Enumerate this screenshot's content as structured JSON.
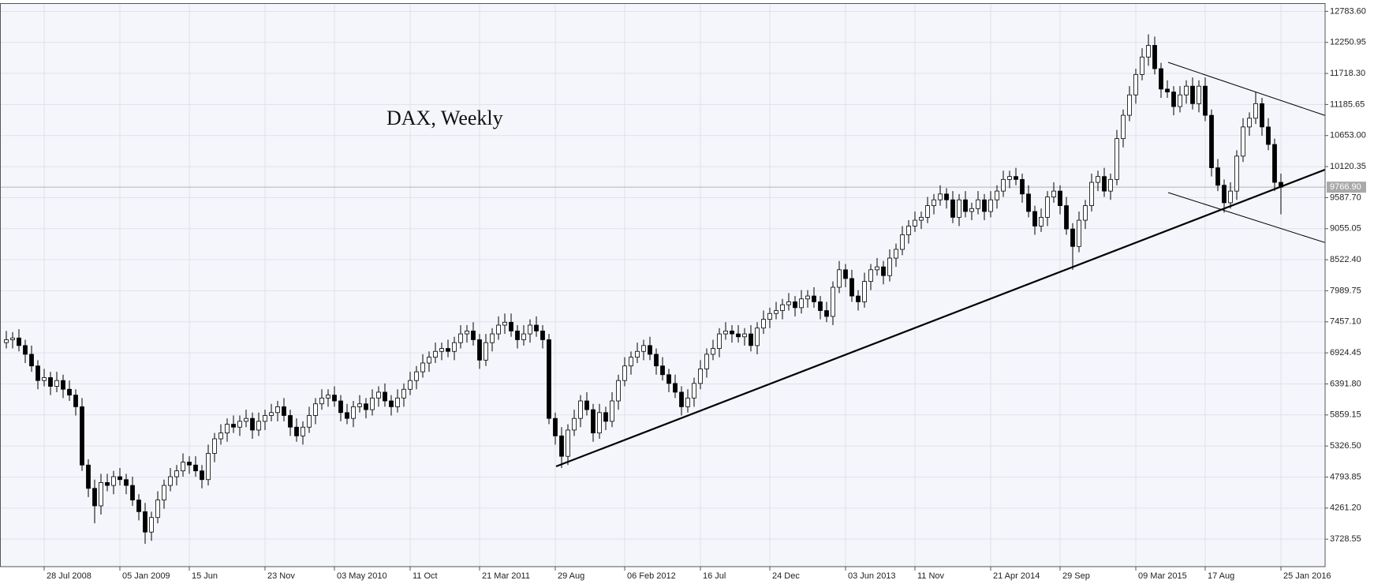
{
  "chart_data": {
    "type": "candlestick",
    "title": "DAX, Weekly",
    "categories": [
      null,
      null,
      null,
      null,
      null,
      null,
      "28 Jul 2008",
      null,
      null,
      null,
      null,
      null,
      null,
      null,
      null,
      null,
      null,
      null,
      "05 Jan 2009",
      null,
      null,
      null,
      null,
      null,
      null,
      null,
      null,
      null,
      null,
      "15 Jun",
      null,
      null,
      null,
      null,
      null,
      null,
      null,
      null,
      null,
      null,
      null,
      "23 Nov",
      null,
      null,
      null,
      null,
      null,
      null,
      null,
      null,
      null,
      null,
      "03 May 2010",
      null,
      null,
      null,
      null,
      null,
      null,
      null,
      null,
      null,
      null,
      null,
      "11 Oct",
      null,
      null,
      null,
      null,
      null,
      null,
      null,
      null,
      null,
      null,
      "21 Mar 2011",
      null,
      null,
      null,
      null,
      null,
      null,
      null,
      null,
      null,
      null,
      null,
      "29 Aug",
      null,
      null,
      null,
      null,
      null,
      null,
      null,
      null,
      null,
      null,
      "06 Feb 2012",
      null,
      null,
      null,
      null,
      null,
      null,
      null,
      null,
      null,
      null,
      null,
      "16 Jul",
      null,
      null,
      null,
      null,
      null,
      null,
      null,
      null,
      null,
      null,
      "24 Dec",
      null,
      null,
      null,
      null,
      null,
      null,
      null,
      null,
      null,
      null,
      null,
      "03 Jun 2013",
      null,
      null,
      null,
      null,
      null,
      null,
      null,
      null,
      null,
      null,
      "11 Nov",
      null,
      null,
      null,
      null,
      null,
      null,
      null,
      null,
      null,
      null,
      null,
      "21 Apr 2014",
      null,
      null,
      null,
      null,
      null,
      null,
      null,
      null,
      null,
      null,
      "29 Sep",
      null,
      null,
      null,
      null,
      null,
      null,
      null,
      null,
      null,
      null,
      null,
      "09 Mar 2015",
      null,
      null,
      null,
      null,
      null,
      null,
      null,
      null,
      null,
      null,
      "17 Aug",
      null,
      null,
      null,
      null,
      null,
      null,
      null,
      null,
      null,
      null,
      null,
      "25 Jan 2016"
    ],
    "open": [
      7100,
      7150,
      7180,
      7050,
      6900,
      6700,
      6450,
      6500,
      6350,
      6450,
      6300,
      6200,
      6000,
      5000,
      4600,
      4300,
      4700,
      4650,
      4800,
      4750,
      4650,
      4400,
      4200,
      3850,
      4100,
      4400,
      4650,
      4800,
      4900,
      5050,
      5000,
      4900,
      4750,
      5200,
      5450,
      5550,
      5700,
      5650,
      5750,
      5800,
      5600,
      5750,
      5850,
      5900,
      6000,
      5850,
      5650,
      5500,
      5650,
      5850,
      6050,
      6150,
      6200,
      6100,
      5900,
      5800,
      6000,
      6050,
      5950,
      6150,
      6250,
      6100,
      6000,
      6150,
      6300,
      6450,
      6600,
      6750,
      6850,
      6950,
      7000,
      6950,
      7100,
      7250,
      7300,
      7150,
      6800,
      7100,
      7250,
      7400,
      7450,
      7300,
      7150,
      7250,
      7400,
      7300,
      7150,
      5800,
      5500,
      5150,
      5600,
      5800,
      6100,
      5950,
      5550,
      5900,
      5750,
      6100,
      6450,
      6700,
      6850,
      6950,
      7050,
      6900,
      6700,
      6550,
      6400,
      6250,
      6000,
      6150,
      6400,
      6650,
      6900,
      7000,
      7250,
      7300,
      7250,
      7200,
      7250,
      7050,
      7350,
      7500,
      7600,
      7650,
      7750,
      7800,
      7700,
      7850,
      7900,
      7800,
      7650,
      7550,
      8050,
      8350,
      8200,
      7900,
      7800,
      8150,
      8350,
      8400,
      8250,
      8550,
      8700,
      8950,
      9100,
      9200,
      9250,
      9450,
      9550,
      9650,
      9550,
      9250,
      9550,
      9350,
      9400,
      9550,
      9350,
      9550,
      9700,
      9900,
      9950,
      9900,
      9650,
      9350,
      9100,
      9250,
      9600,
      9700,
      9450,
      9050,
      8750,
      9200,
      9450,
      9850,
      9950,
      9700,
      9900,
      10600,
      11000,
      11350,
      11700,
      12000,
      12200,
      11800,
      11450,
      11400,
      11150,
      11350,
      11500,
      11200,
      11500,
      11000,
      10100,
      9800,
      9500,
      9700,
      10300,
      10800,
      10950,
      11200,
      10800,
      10500,
      9850
    ],
    "high": [
      7300,
      7280,
      7330,
      7150,
      7050,
      6800,
      6650,
      6600,
      6600,
      6550,
      6450,
      6300,
      6150,
      5100,
      4750,
      4850,
      4850,
      4900,
      4950,
      4850,
      4800,
      4500,
      4350,
      4200,
      4550,
      4750,
      4950,
      5000,
      5200,
      5150,
      5150,
      5000,
      5350,
      5550,
      5700,
      5800,
      5850,
      5850,
      5950,
      5900,
      5900,
      5950,
      6050,
      6100,
      6150,
      5950,
      5800,
      5750,
      6000,
      6150,
      6300,
      6300,
      6350,
      6200,
      6050,
      6100,
      6200,
      6150,
      6300,
      6350,
      6400,
      6200,
      6300,
      6400,
      6600,
      6700,
      6900,
      6950,
      7100,
      7100,
      7150,
      7200,
      7400,
      7400,
      7450,
      7250,
      7250,
      7350,
      7550,
      7600,
      7600,
      7400,
      7400,
      7500,
      7550,
      7400,
      7250,
      5900,
      5650,
      5700,
      5950,
      6200,
      6250,
      6050,
      6050,
      6000,
      6250,
      6550,
      6850,
      6950,
      7100,
      7150,
      7200,
      7000,
      6850,
      6650,
      6550,
      6350,
      6300,
      6500,
      6800,
      7000,
      7150,
      7350,
      7450,
      7400,
      7400,
      7350,
      7400,
      7450,
      7650,
      7700,
      7800,
      7850,
      7950,
      7900,
      8000,
      8000,
      8050,
      7900,
      7800,
      8150,
      8500,
      8450,
      8350,
      8000,
      8300,
      8450,
      8550,
      8500,
      8700,
      8800,
      9100,
      9200,
      9350,
      9350,
      9600,
      9650,
      9800,
      9750,
      9700,
      9650,
      9700,
      9500,
      9700,
      9650,
      9700,
      9800,
      10050,
      10050,
      10100,
      10000,
      9800,
      9450,
      9400,
      9700,
      9850,
      9800,
      9600,
      9150,
      9350,
      9550,
      10000,
      10050,
      10100,
      10000,
      10750,
      11100,
      11500,
      11800,
      12150,
      12390,
      12350,
      11900,
      11600,
      11500,
      11500,
      11600,
      11650,
      11600,
      11650,
      11100,
      10250,
      9900,
      9850,
      10400,
      10950,
      11050,
      11400,
      11300,
      10950,
      10600,
      10000
    ],
    "low": [
      7000,
      7000,
      6950,
      6750,
      6600,
      6300,
      6350,
      6200,
      6250,
      6150,
      6100,
      5850,
      4900,
      4450,
      4000,
      4150,
      4550,
      4500,
      4650,
      4500,
      4300,
      4050,
      3650,
      3700,
      4000,
      4250,
      4550,
      4650,
      4800,
      4850,
      4800,
      4600,
      4650,
      5050,
      5350,
      5400,
      5550,
      5500,
      5650,
      5450,
      5500,
      5600,
      5750,
      5750,
      5750,
      5500,
      5400,
      5350,
      5550,
      5700,
      5950,
      6000,
      6000,
      5750,
      5700,
      5650,
      5900,
      5800,
      5850,
      6000,
      6000,
      5850,
      5900,
      6000,
      6200,
      6300,
      6500,
      6600,
      6750,
      6800,
      6850,
      6800,
      7000,
      7100,
      7050,
      6650,
      6700,
      6950,
      7150,
      7250,
      7200,
      7000,
      7050,
      7100,
      7200,
      7000,
      5700,
      5350,
      4950,
      5000,
      5500,
      5650,
      5850,
      5400,
      5450,
      5600,
      5650,
      5950,
      6350,
      6550,
      6750,
      6800,
      6800,
      6550,
      6450,
      6250,
      6150,
      5850,
      5900,
      6000,
      6300,
      6500,
      6800,
      6850,
      7150,
      7100,
      7100,
      7050,
      6950,
      6900,
      7250,
      7350,
      7500,
      7500,
      7650,
      7550,
      7600,
      7700,
      7700,
      7500,
      7450,
      7400,
      7950,
      8050,
      7800,
      7650,
      7700,
      8000,
      8250,
      8100,
      8150,
      8400,
      8600,
      8800,
      9000,
      9050,
      9150,
      9300,
      9450,
      9400,
      9150,
      9100,
      9250,
      9200,
      9300,
      9200,
      9250,
      9400,
      9600,
      9750,
      9800,
      9500,
      9250,
      8950,
      9000,
      9100,
      9500,
      9300,
      8950,
      8350,
      8650,
      9050,
      9350,
      9700,
      9600,
      9550,
      9800,
      10450,
      10900,
      11200,
      11600,
      11850,
      11700,
      11300,
      11300,
      11000,
      11050,
      11200,
      11100,
      11050,
      10900,
      9950,
      9700,
      9330,
      9400,
      9550,
      10200,
      10650,
      10850,
      10650,
      10400,
      9700,
      9300
    ],
    "close": [
      7150,
      7180,
      7050,
      6900,
      6700,
      6450,
      6500,
      6350,
      6450,
      6300,
      6200,
      6000,
      5000,
      4600,
      4300,
      4700,
      4650,
      4800,
      4750,
      4650,
      4400,
      4200,
      3850,
      4100,
      4400,
      4650,
      4800,
      4900,
      5050,
      5000,
      4900,
      4750,
      5200,
      5450,
      5550,
      5700,
      5650,
      5750,
      5800,
      5600,
      5750,
      5850,
      5900,
      6000,
      5850,
      5650,
      5500,
      5650,
      5850,
      6050,
      6150,
      6200,
      6100,
      5900,
      5800,
      6000,
      6050,
      5950,
      6150,
      6250,
      6100,
      6000,
      6150,
      6300,
      6450,
      6600,
      6750,
      6850,
      6950,
      7000,
      6950,
      7100,
      7250,
      7300,
      7150,
      6800,
      7100,
      7250,
      7400,
      7450,
      7300,
      7150,
      7250,
      7400,
      7300,
      7150,
      5800,
      5500,
      5150,
      5600,
      5800,
      6100,
      5950,
      5550,
      5900,
      5750,
      6100,
      6450,
      6700,
      6850,
      6950,
      7050,
      6900,
      6700,
      6550,
      6400,
      6250,
      6000,
      6150,
      6400,
      6650,
      6900,
      7000,
      7250,
      7300,
      7250,
      7200,
      7250,
      7050,
      7350,
      7500,
      7600,
      7650,
      7750,
      7800,
      7700,
      7850,
      7900,
      7800,
      7650,
      7550,
      8050,
      8350,
      8200,
      7900,
      7800,
      8150,
      8350,
      8400,
      8250,
      8550,
      8700,
      8950,
      9100,
      9200,
      9250,
      9450,
      9550,
      9650,
      9550,
      9250,
      9550,
      9350,
      9400,
      9550,
      9350,
      9550,
      9700,
      9900,
      9950,
      9900,
      9650,
      9350,
      9100,
      9250,
      9600,
      9700,
      9450,
      9050,
      8750,
      9200,
      9450,
      9850,
      9950,
      9700,
      9900,
      10600,
      11000,
      11350,
      11700,
      12000,
      12200,
      11800,
      11450,
      11400,
      11150,
      11350,
      11500,
      11200,
      11500,
      11000,
      10100,
      9800,
      9500,
      9700,
      10300,
      10800,
      10950,
      11200,
      10800,
      10500,
      9850,
      9766.9
    ],
    "up_color": "#ffffff",
    "down_color": "#000000",
    "ylim": [
      3257,
      12924
    ],
    "yticks": [
      {
        "value": 12783.6,
        "label": "12783.60"
      },
      {
        "value": 12250.95,
        "label": "12250.95"
      },
      {
        "value": 11718.3,
        "label": "11718.30"
      },
      {
        "value": 11185.65,
        "label": "11185.65"
      },
      {
        "value": 10653,
        "label": "10653.00"
      },
      {
        "value": 10120.35,
        "label": "10120.35"
      },
      {
        "value": 9587.7,
        "label": "9587.70"
      },
      {
        "value": 9055.05,
        "label": "9055.05"
      },
      {
        "value": 8522.4,
        "label": "8522.40"
      },
      {
        "value": 7989.75,
        "label": "7989.75"
      },
      {
        "value": 7457.1,
        "label": "7457.10"
      },
      {
        "value": 6924.45,
        "label": "6924.45"
      },
      {
        "value": 6391.8,
        "label": "6391.80"
      },
      {
        "value": 5859.15,
        "label": "5859.15"
      },
      {
        "value": 5326.5,
        "label": "5326.50"
      },
      {
        "value": 4793.85,
        "label": "4793.85"
      },
      {
        "value": 4261.2,
        "label": "4261.20"
      },
      {
        "value": 3728.55,
        "label": "3728.55"
      }
    ],
    "last_price": {
      "value": 9766.9,
      "label": "9766.90"
    },
    "grid": true
  }
}
